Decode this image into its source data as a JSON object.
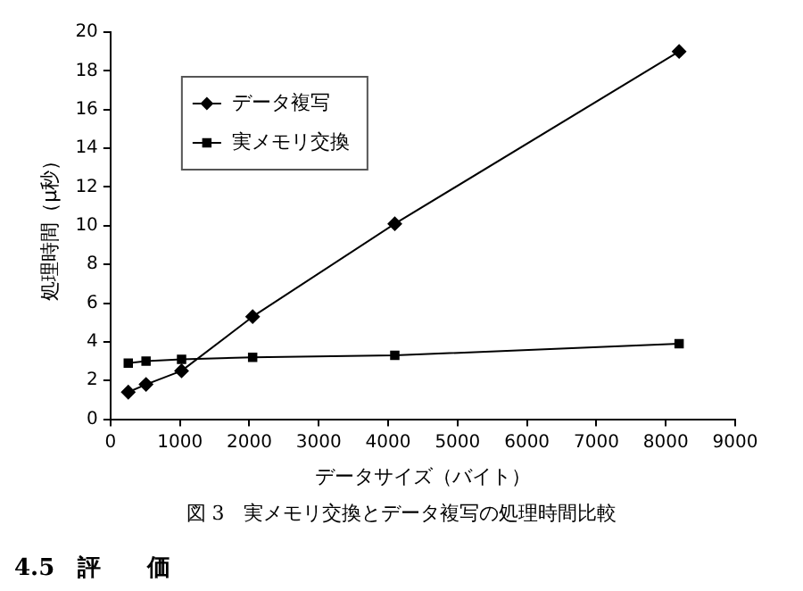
{
  "chart_data": {
    "type": "line",
    "xlabel": "データサイズ（バイト）",
    "ylabel": "処理時間（μ秒）",
    "x": [
      256,
      512,
      1024,
      2048,
      4096,
      8192
    ],
    "series": [
      {
        "name": "データ複写",
        "color": "#000000",
        "marker": "diamond",
        "values": [
          1.4,
          1.8,
          2.5,
          5.3,
          10.1,
          19.0
        ]
      },
      {
        "name": "実メモリ交換",
        "color": "#000000",
        "marker": "square",
        "values": [
          2.9,
          3.0,
          3.1,
          3.2,
          3.3,
          3.9
        ]
      }
    ],
    "xlim": [
      0,
      9000
    ],
    "xticks": [
      0,
      1000,
      2000,
      3000,
      4000,
      5000,
      6000,
      7000,
      8000,
      9000
    ],
    "ylim": [
      0,
      20
    ],
    "yticks": [
      0,
      2,
      4,
      6,
      8,
      10,
      12,
      14,
      16,
      18,
      20
    ],
    "grid": false,
    "legend": "top left",
    "line_style": "solid",
    "annotations": [
      "図 3　実メモリ交換とデータ複写の処理時間比較",
      "4.5　評　　価"
    ]
  }
}
